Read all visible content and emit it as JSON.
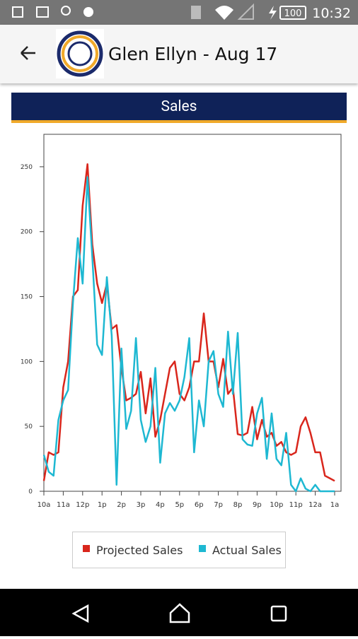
{
  "status_bar": {
    "battery": "100",
    "time": "10:32"
  },
  "app_bar": {
    "title": "Glen Ellyn - Aug 17"
  },
  "chart_data": {
    "type": "line",
    "title": "Sales",
    "categories": [
      "10a",
      null,
      null,
      null,
      "11a",
      null,
      null,
      null,
      "12p",
      null,
      null,
      null,
      "1p",
      null,
      null,
      null,
      "2p",
      null,
      null,
      null,
      "3p",
      null,
      null,
      null,
      "4p",
      null,
      null,
      null,
      "5p",
      null,
      null,
      null,
      "6p",
      null,
      null,
      null,
      "7p",
      null,
      null,
      null,
      "8p",
      null,
      null,
      null,
      "9p",
      null,
      null,
      null,
      "10p",
      null,
      null,
      null,
      "11p",
      null,
      null,
      null,
      "12a",
      null,
      null,
      null,
      "1a"
    ],
    "series": [
      {
        "name": "Projected Sales",
        "color": "#d9261c",
        "values": [
          8,
          30,
          28,
          30,
          80,
          100,
          150,
          155,
          220,
          252,
          190,
          160,
          145,
          160,
          125,
          128,
          95,
          70,
          72,
          75,
          92,
          60,
          87,
          42,
          55,
          75,
          95,
          100,
          75,
          70,
          80,
          100,
          100,
          137,
          100,
          100,
          80,
          102,
          75,
          80,
          44,
          43,
          45,
          65,
          40,
          55,
          42,
          45,
          35,
          38,
          30,
          28,
          30,
          50,
          57,
          45,
          30,
          30,
          12,
          10,
          8
        ]
      },
      {
        "name": "Actual Sales",
        "color": "#1eb8d2",
        "values": [
          28,
          15,
          12,
          55,
          70,
          78,
          145,
          195,
          160,
          242,
          180,
          113,
          105,
          165,
          120,
          5,
          110,
          48,
          62,
          118,
          55,
          38,
          50,
          95,
          22,
          60,
          68,
          62,
          70,
          88,
          118,
          30,
          70,
          50,
          100,
          108,
          75,
          65,
          123,
          75,
          122,
          40,
          36,
          35,
          60,
          72,
          25,
          60,
          25,
          20,
          45,
          5,
          0,
          10,
          2,
          0,
          5,
          0,
          0,
          0,
          0
        ]
      }
    ],
    "ylim": [
      0,
      275
    ],
    "yticks": [
      0,
      50,
      100,
      150,
      200,
      250
    ]
  }
}
